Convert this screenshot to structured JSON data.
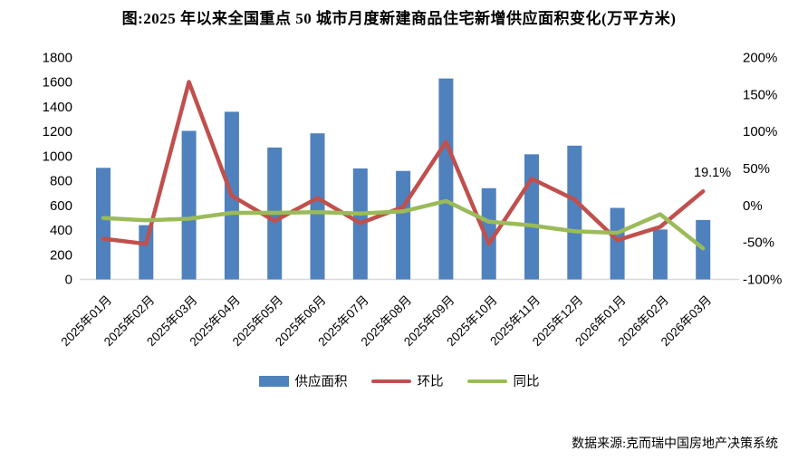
{
  "title": "图:2025 年以来全国重点 50 城市月度新建商品住宅新增供应面积变化(万平方米)",
  "source": "数据来源:克而瑞中国房地产决策系统",
  "annotation": {
    "text": "19.1%"
  },
  "colors": {
    "bar": "#4F81BD",
    "mom_line": "#C0504D",
    "yoy_line": "#9BBB59",
    "axis_line": "#D9D9D9",
    "text": "#000000"
  },
  "legend": [
    {
      "label": "供应面积",
      "type": "bar"
    },
    {
      "label": "环比",
      "type": "line"
    },
    {
      "label": "同比",
      "type": "line"
    }
  ],
  "chart_data": {
    "type": "bar",
    "subtype": "bar+line combo, dual axis",
    "title": "图:2025 年以来全国重点 50 城市月度新建商品住宅新增供应面积变化(万平方米)",
    "categories": [
      "2025年01月",
      "2025年02月",
      "2025年03月",
      "2025年04月",
      "2025年05月",
      "2025年06月",
      "2025年07月",
      "2025年08月",
      "2025年09月",
      "2025年10月",
      "2025年11月",
      "2025年12月",
      "2026年01月",
      "2026年02月",
      "2026年03月"
    ],
    "series": [
      {
        "name": "供应面积",
        "type": "bar",
        "axis": "left",
        "unit": "万平方米",
        "values": [
          905,
          440,
          1205,
          1360,
          1070,
          1185,
          900,
          880,
          1630,
          740,
          1015,
          1085,
          580,
          405,
          482
        ]
      },
      {
        "name": "环比",
        "type": "line",
        "axis": "right",
        "unit": "%",
        "values": [
          -45,
          -52,
          167,
          13,
          -21,
          10,
          -24,
          -2,
          86,
          -52,
          36,
          8,
          -47,
          -29,
          19.1
        ]
      },
      {
        "name": "同比",
        "type": "line",
        "axis": "right",
        "unit": "%",
        "values": [
          -17,
          -20,
          -18,
          -10,
          -10,
          -9,
          -11,
          -8,
          6,
          -22,
          -27,
          -35,
          -37,
          -12,
          -58
        ]
      }
    ],
    "left_axis": {
      "min": 0,
      "max": 1800,
      "step": 200,
      "ticks": [
        "0",
        "200",
        "400",
        "600",
        "800",
        "1000",
        "1200",
        "1400",
        "1600",
        "1800"
      ]
    },
    "right_axis": {
      "min": -100,
      "max": 200,
      "step": 50,
      "ticks": [
        "-100%",
        "-50%",
        "0%",
        "50%",
        "100%",
        "150%",
        "200%"
      ]
    },
    "grid": false,
    "legend_position": "bottom",
    "point_label": {
      "series": "环比",
      "category": "2026年03月",
      "text": "19.1%"
    }
  }
}
